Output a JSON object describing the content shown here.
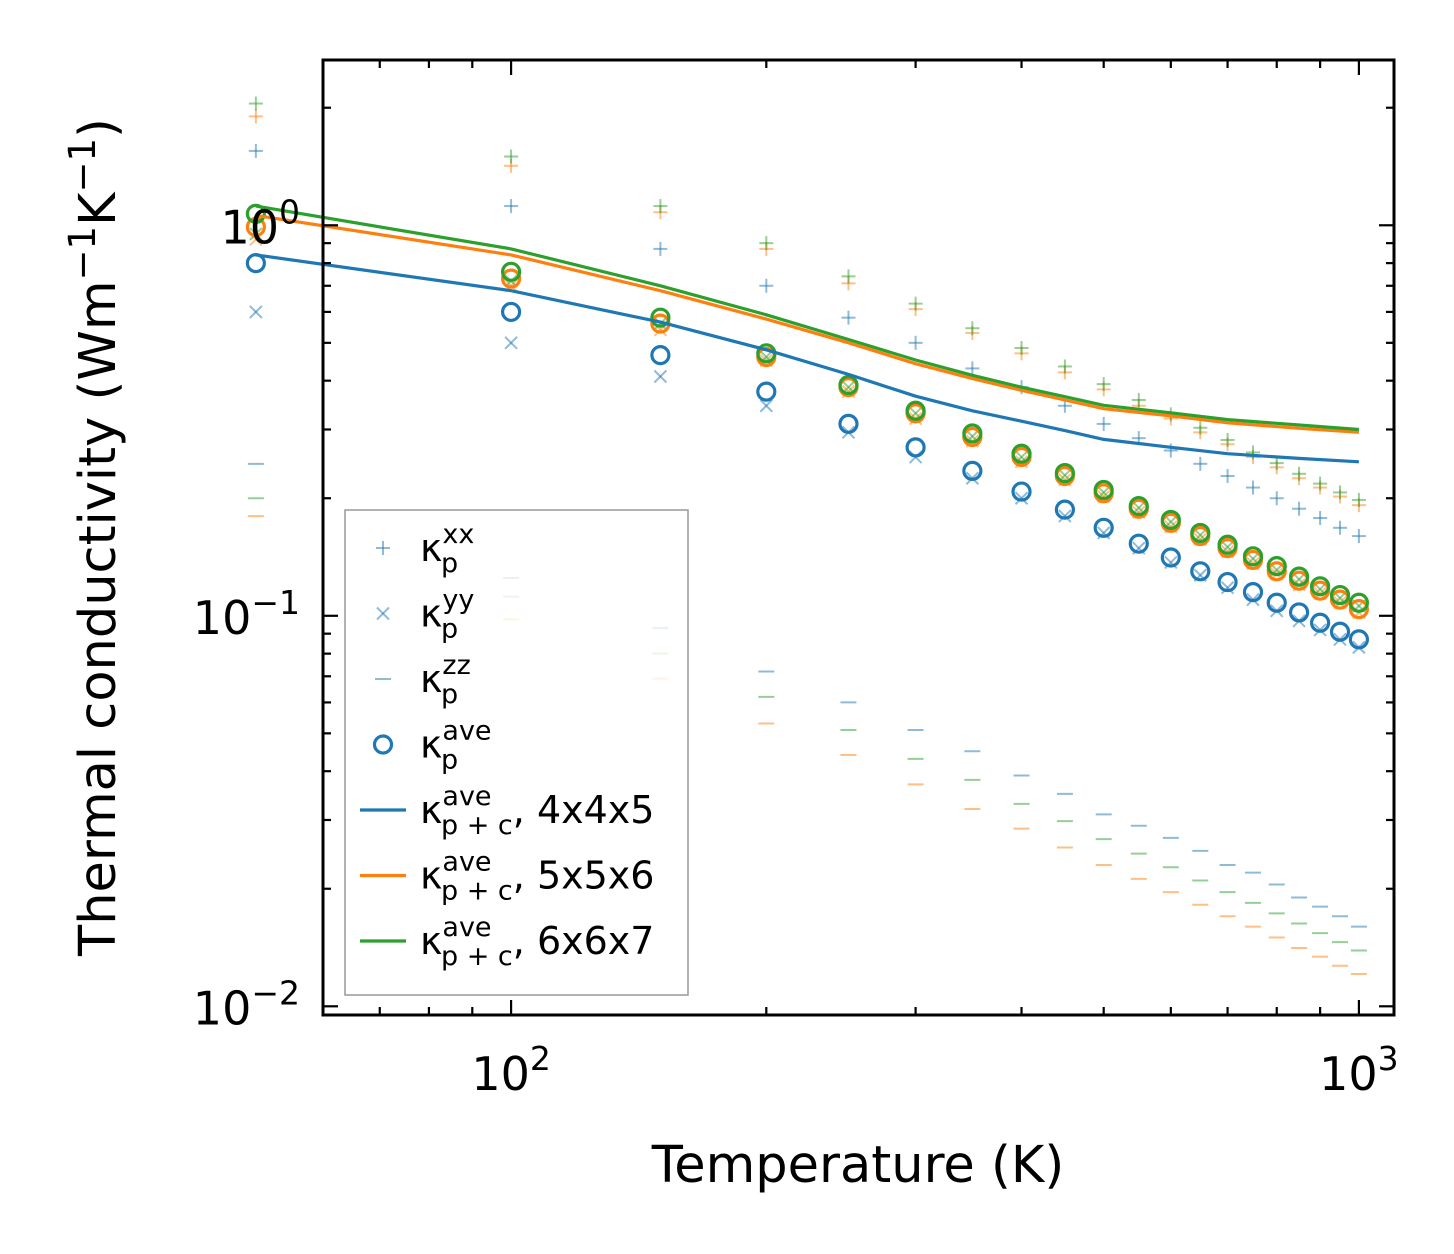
{
  "chart_data": {
    "type": "scatter",
    "scale": {
      "x": "log",
      "y": "log"
    },
    "xlabel": "Temperature (K)",
    "ylabel_parts": {
      "base": "Thermal conductivity (Wm",
      "exp1": "−1",
      "mid": "K",
      "exp2": "−1",
      "close": ")"
    },
    "xlim": [
      60,
      1100
    ],
    "ylim": [
      0.0095,
      2.65
    ],
    "x_ticks": [
      {
        "value": 100,
        "base": "10",
        "exp": "2"
      },
      {
        "value": 1000,
        "base": "10",
        "exp": "3"
      }
    ],
    "y_ticks": [
      {
        "value": 1.0,
        "base": "10",
        "exp": "0"
      },
      {
        "value": 0.1,
        "base": "10",
        "exp": "−1"
      },
      {
        "value": 0.01,
        "base": "10",
        "exp": "−2"
      }
    ],
    "colors": {
      "blue": "#1f77b4",
      "orange": "#ff7f0e",
      "green": "#2ca02c"
    },
    "x": [
      50,
      100,
      150,
      200,
      250,
      300,
      350,
      400,
      450,
      500,
      550,
      600,
      650,
      700,
      750,
      800,
      850,
      900,
      950,
      1000
    ],
    "series": [
      {
        "name": "kp_xx_4x4x5",
        "marker": "plus",
        "color": "#1f77b4",
        "values": [
          1.55,
          1.12,
          0.87,
          0.7,
          0.58,
          0.5,
          0.43,
          0.385,
          0.345,
          0.31,
          0.285,
          0.265,
          0.245,
          0.228,
          0.213,
          0.2,
          0.188,
          0.178,
          0.168,
          0.16
        ]
      },
      {
        "name": "kp_xx_5x5x6",
        "marker": "plus",
        "color": "#ff7f0e",
        "values": [
          1.9,
          1.42,
          1.08,
          0.87,
          0.71,
          0.61,
          0.53,
          0.47,
          0.42,
          0.38,
          0.345,
          0.32,
          0.295,
          0.275,
          0.255,
          0.24,
          0.225,
          0.213,
          0.202,
          0.192
        ]
      },
      {
        "name": "kp_xx_6x6x7",
        "marker": "plus",
        "color": "#2ca02c",
        "values": [
          2.05,
          1.5,
          1.12,
          0.9,
          0.74,
          0.63,
          0.545,
          0.485,
          0.435,
          0.392,
          0.357,
          0.328,
          0.303,
          0.282,
          0.262,
          0.246,
          0.231,
          0.218,
          0.207,
          0.198
        ]
      },
      {
        "name": "kp_yy_4x4x5",
        "marker": "x",
        "color": "#1f77b4",
        "values": [
          0.6,
          0.5,
          0.41,
          0.345,
          0.295,
          0.255,
          0.225,
          0.2,
          0.18,
          0.163,
          0.149,
          0.137,
          0.127,
          0.118,
          0.11,
          0.103,
          0.097,
          0.092,
          0.087,
          0.083
        ]
      },
      {
        "name": "kp_yy_5x5x6",
        "marker": "x",
        "color": "#ff7f0e",
        "values": [
          0.92,
          0.7,
          0.54,
          0.45,
          0.375,
          0.32,
          0.28,
          0.248,
          0.223,
          0.202,
          0.184,
          0.169,
          0.157,
          0.146,
          0.136,
          0.128,
          0.12,
          0.114,
          0.108,
          0.102
        ]
      },
      {
        "name": "kp_yy_6x6x7",
        "marker": "x",
        "color": "#2ca02c",
        "values": [
          0.95,
          0.72,
          0.56,
          0.46,
          0.385,
          0.33,
          0.288,
          0.255,
          0.229,
          0.207,
          0.189,
          0.174,
          0.161,
          0.15,
          0.14,
          0.131,
          0.124,
          0.117,
          0.111,
          0.106
        ]
      },
      {
        "name": "kp_zz_4x4x5",
        "marker": "dash",
        "color": "#1f77b4",
        "values": [
          0.245,
          0.125,
          0.093,
          0.072,
          0.06,
          0.051,
          0.045,
          0.039,
          0.035,
          0.031,
          0.029,
          0.027,
          0.025,
          0.023,
          0.022,
          0.0205,
          0.019,
          0.018,
          0.017,
          0.016
        ]
      },
      {
        "name": "kp_zz_5x5x6",
        "marker": "dash",
        "color": "#ff7f0e",
        "values": [
          0.18,
          0.098,
          0.069,
          0.053,
          0.044,
          0.037,
          0.032,
          0.0285,
          0.0255,
          0.023,
          0.0212,
          0.0196,
          0.0182,
          0.017,
          0.016,
          0.015,
          0.0141,
          0.0134,
          0.0127,
          0.0121
        ]
      },
      {
        "name": "kp_zz_6x6x7",
        "marker": "dash",
        "color": "#2ca02c",
        "values": [
          0.2,
          0.112,
          0.08,
          0.062,
          0.051,
          0.043,
          0.038,
          0.033,
          0.0298,
          0.0268,
          0.0246,
          0.0227,
          0.021,
          0.0196,
          0.0184,
          0.0173,
          0.0163,
          0.0154,
          0.0146,
          0.0139
        ]
      },
      {
        "name": "kp_ave_4x4x5",
        "marker": "circle",
        "color": "#1f77b4",
        "values": [
          0.8,
          0.6,
          0.465,
          0.375,
          0.31,
          0.27,
          0.235,
          0.208,
          0.187,
          0.168,
          0.153,
          0.141,
          0.13,
          0.122,
          0.115,
          0.108,
          0.102,
          0.096,
          0.091,
          0.087
        ]
      },
      {
        "name": "kp_ave_5x5x6",
        "marker": "circle",
        "color": "#ff7f0e",
        "values": [
          0.99,
          0.73,
          0.56,
          0.46,
          0.385,
          0.33,
          0.287,
          0.255,
          0.228,
          0.206,
          0.188,
          0.173,
          0.16,
          0.149,
          0.139,
          0.13,
          0.123,
          0.116,
          0.11,
          0.104
        ]
      },
      {
        "name": "kp_ave_6x6x7",
        "marker": "circle",
        "color": "#2ca02c",
        "values": [
          1.07,
          0.76,
          0.58,
          0.47,
          0.39,
          0.335,
          0.293,
          0.26,
          0.232,
          0.21,
          0.191,
          0.176,
          0.163,
          0.152,
          0.142,
          0.134,
          0.126,
          0.119,
          0.113,
          0.108
        ]
      },
      {
        "name": "kpc_ave_4x4x5",
        "marker": "line",
        "color": "#1f77b4",
        "values": [
          0.84,
          0.68,
          0.565,
          0.48,
          0.415,
          0.365,
          0.335,
          0.315,
          0.298,
          0.283,
          0.27,
          0.26,
          0.253,
          0.248
        ]
      },
      {
        "name": "kpc_ave_5x5x6",
        "marker": "line",
        "color": "#ff7f0e",
        "values": [
          1.06,
          0.84,
          0.68,
          0.575,
          0.5,
          0.442,
          0.405,
          0.378,
          0.357,
          0.339,
          0.325,
          0.312,
          0.302,
          0.295
        ]
      },
      {
        "name": "kpc_ave_6x6x7",
        "marker": "line",
        "color": "#2ca02c",
        "values": [
          1.12,
          0.87,
          0.7,
          0.59,
          0.51,
          0.452,
          0.413,
          0.385,
          0.364,
          0.346,
          0.331,
          0.318,
          0.308,
          0.3
        ]
      }
    ],
    "line_x": [
      50,
      100,
      150,
      200,
      250,
      300,
      350,
      400,
      450,
      500,
      600,
      700,
      850,
      1000
    ],
    "legend": {
      "placement": "lower-left",
      "entries": [
        {
          "marker": "plus",
          "color": "#1f77b4",
          "symbol": "κ",
          "sub": "p",
          "sup": "xx",
          "suffix": ""
        },
        {
          "marker": "x",
          "color": "#1f77b4",
          "symbol": "κ",
          "sub": "p",
          "sup": "yy",
          "suffix": ""
        },
        {
          "marker": "dash",
          "color": "#1f77b4",
          "symbol": "κ",
          "sub": "p",
          "sup": "zz",
          "suffix": ""
        },
        {
          "marker": "circle",
          "color": "#1f77b4",
          "symbol": "κ",
          "sub": "p",
          "sup": "ave",
          "suffix": ""
        },
        {
          "marker": "line",
          "color": "#1f77b4",
          "symbol": "κ",
          "sub": "p + c",
          "sup": "ave",
          "suffix": ", 4x4x5"
        },
        {
          "marker": "line",
          "color": "#ff7f0e",
          "symbol": "κ",
          "sub": "p + c",
          "sup": "ave",
          "suffix": ", 5x5x6"
        },
        {
          "marker": "line",
          "color": "#2ca02c",
          "symbol": "κ",
          "sub": "p + c",
          "sup": "ave",
          "suffix": ", 6x6x7"
        }
      ]
    }
  }
}
